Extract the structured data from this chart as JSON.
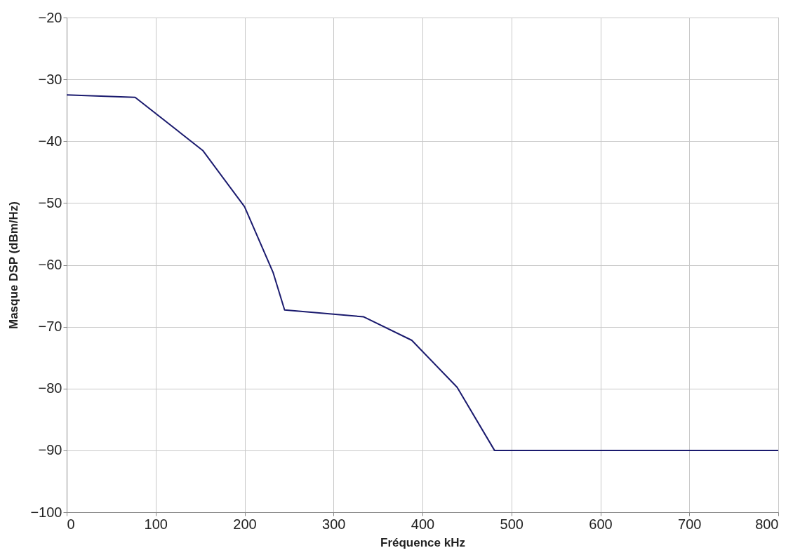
{
  "chart_data": {
    "type": "line",
    "xlabel": "Fréquence kHz",
    "ylabel": "Masque DSP (dBm/Hz)",
    "x": [
      0,
      77,
      153,
      200,
      232,
      245,
      334,
      388,
      439,
      481,
      800
    ],
    "series": [
      {
        "color": "#1a1a6e",
        "values": [
          -32.5,
          -32.9,
          -41.5,
          -50.6,
          -61.2,
          -67.3,
          -68.4,
          -72.2,
          -79.8,
          -90,
          -90
        ]
      }
    ],
    "xlim": [
      0,
      800
    ],
    "xticks": [
      0,
      100,
      200,
      300,
      400,
      500,
      600,
      700,
      800
    ],
    "ylim": [
      -100,
      -20
    ],
    "yticks": [
      -100,
      -90,
      -80,
      -70,
      -60,
      -50,
      -40,
      -30,
      -20
    ],
    "grid": true,
    "marker": "none",
    "line_style": "solid"
  }
}
